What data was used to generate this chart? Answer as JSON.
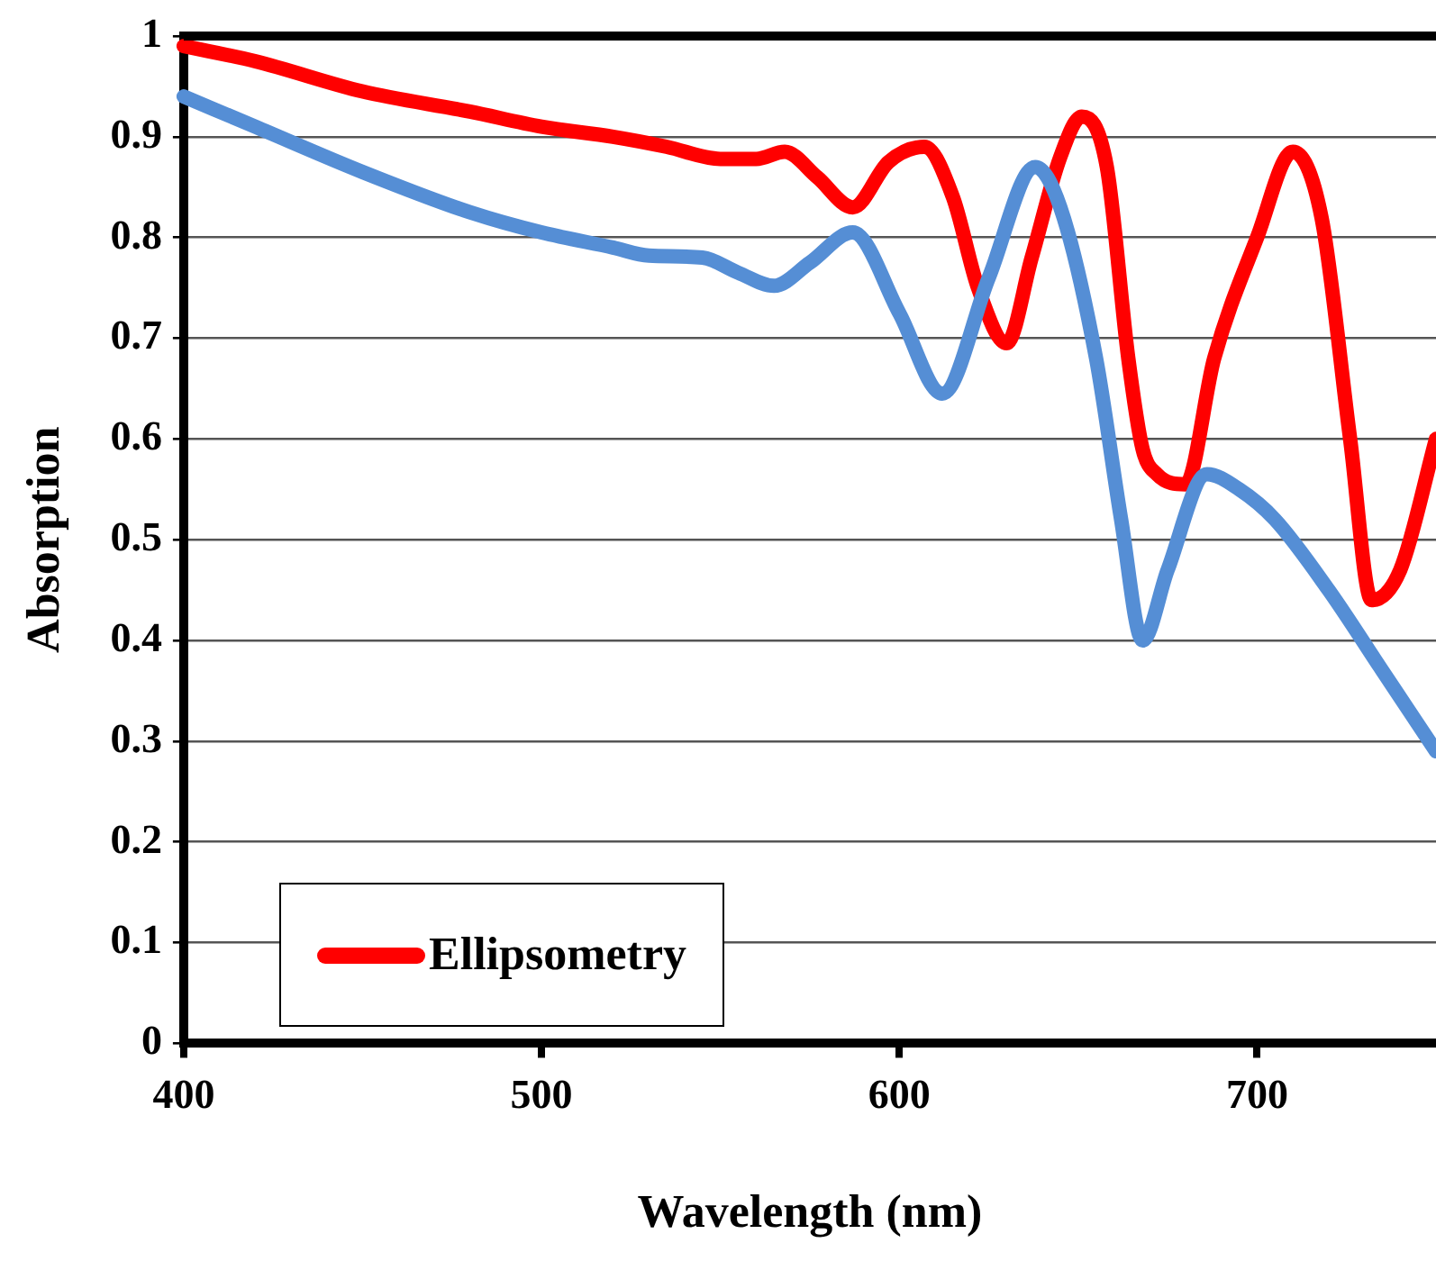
{
  "chart_data": {
    "type": "line",
    "xlabel": "Wavelength (nm)",
    "ylabel": "Absorption",
    "xlim": [
      400,
      750
    ],
    "xticks": [
      400,
      500,
      600,
      700
    ],
    "ylim": [
      0,
      1
    ],
    "yticks": [
      0,
      0.1,
      0.2,
      0.3,
      0.4,
      0.5,
      0.6,
      0.7,
      0.8,
      0.9,
      1
    ],
    "grid": "y",
    "legend": "bottom left",
    "marker": "none",
    "line_style": "solid",
    "series": [
      {
        "color": "#558ed5",
        "x": [
          400,
          420,
          450,
          480,
          500,
          520,
          530,
          545,
          555,
          565,
          575,
          587,
          600,
          612,
          625,
          638,
          645,
          655,
          662,
          668,
          675,
          686,
          695,
          705,
          720,
          735,
          750
        ],
        "values": [
          0.94,
          0.91,
          0.865,
          0.825,
          0.805,
          0.79,
          0.782,
          0.78,
          0.765,
          0.752,
          0.775,
          0.805,
          0.725,
          0.645,
          0.76,
          0.87,
          0.83,
          0.68,
          0.52,
          0.4,
          0.47,
          0.565,
          0.55,
          0.52,
          0.45,
          0.37,
          0.29
        ]
      },
      {
        "name": "Ellipsometry",
        "color": "#ff0000",
        "x": [
          400,
          420,
          450,
          480,
          500,
          520,
          535,
          550,
          560,
          568,
          577,
          587,
          597,
          607,
          615,
          622,
          630,
          637,
          645,
          651,
          658,
          664,
          668,
          672,
          680,
          688,
          700,
          710,
          718,
          726,
          732,
          740,
          750
        ],
        "values": [
          0.99,
          0.975,
          0.945,
          0.925,
          0.91,
          0.9,
          0.89,
          0.878,
          0.878,
          0.885,
          0.86,
          0.83,
          0.875,
          0.89,
          0.84,
          0.75,
          0.695,
          0.78,
          0.88,
          0.92,
          0.87,
          0.68,
          0.59,
          0.565,
          0.555,
          0.68,
          0.8,
          0.885,
          0.82,
          0.6,
          0.44,
          0.47,
          0.6
        ]
      }
    ]
  }
}
